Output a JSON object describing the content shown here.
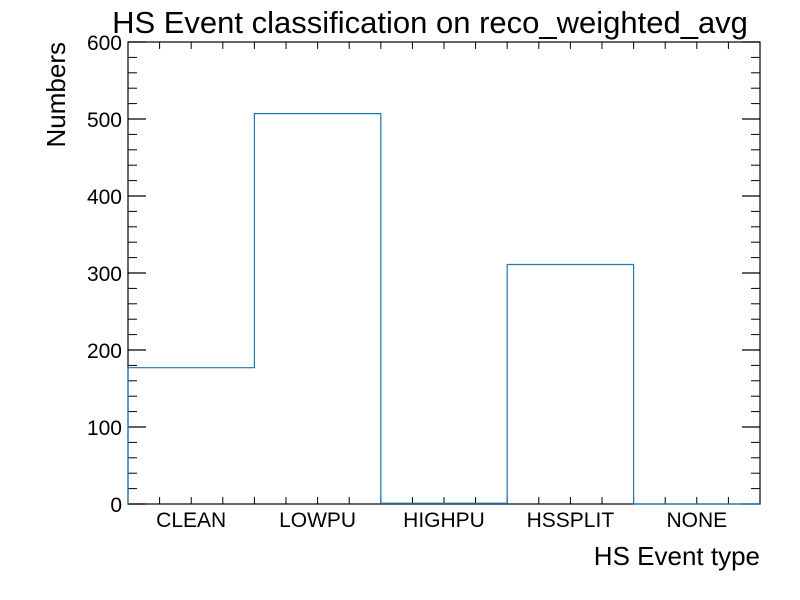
{
  "chart_data": {
    "type": "bar",
    "style": "step-histogram",
    "title": "HS Event classification on reco_weighted_avg",
    "xlabel": "HS Event type",
    "ylabel": "Numbers",
    "categories": [
      "CLEAN",
      "LOWPU",
      "HIGHPU",
      "HSSPLIT",
      "NONE"
    ],
    "values": [
      177,
      507,
      1,
      311,
      0
    ],
    "ylim": [
      0,
      600
    ],
    "y_major_ticks": [
      0,
      100,
      200,
      300,
      400,
      500,
      600
    ],
    "y_minor_step": 20,
    "x_minor_per_bin": 4,
    "grid": false,
    "legend": "none",
    "colors": {
      "line": "#1f77b4",
      "axis": "#000000"
    }
  }
}
